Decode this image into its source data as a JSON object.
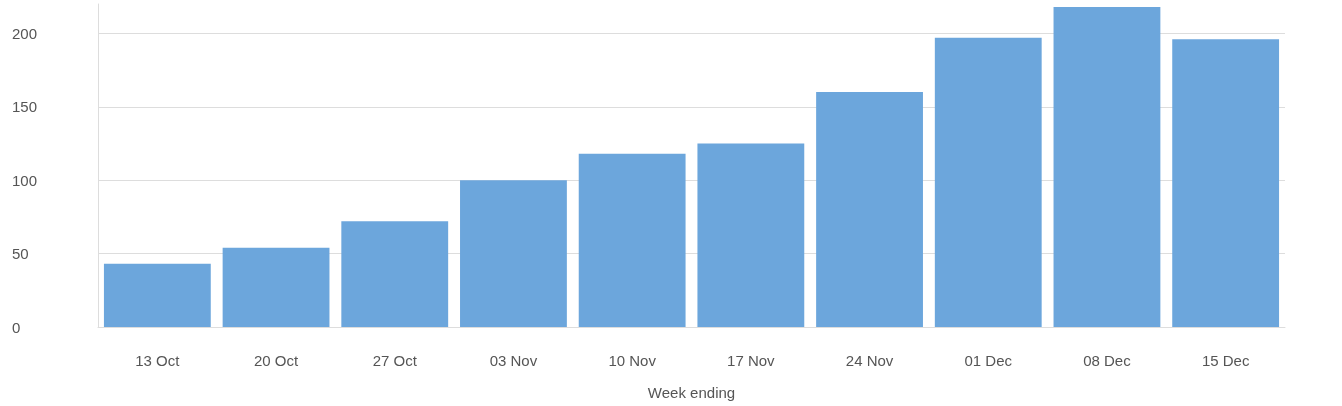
{
  "chart_data": {
    "type": "bar",
    "xlabel": "Week ending",
    "categories": [
      "13 Oct",
      "20 Oct",
      "27 Oct",
      "03 Nov",
      "10 Nov",
      "17 Nov",
      "24 Nov",
      "01 Dec",
      "08 Dec",
      "15 Dec"
    ],
    "values": [
      43,
      54,
      72,
      100,
      118,
      125,
      160,
      197,
      218,
      196
    ],
    "color": "#6ca6dc",
    "ylim": [
      0,
      220
    ],
    "yticks": [
      0,
      50,
      100,
      150,
      200
    ],
    "grid": "y"
  }
}
